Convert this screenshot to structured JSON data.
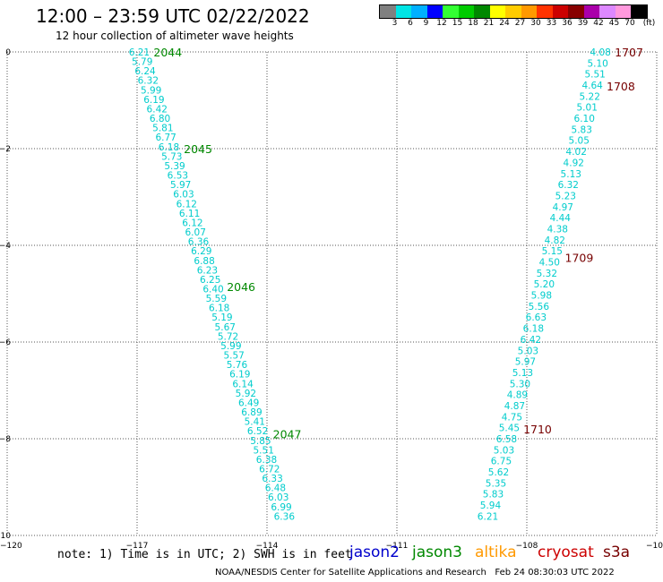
{
  "header": {
    "title": "12:00 – 23:59 UTC 02/22/2022",
    "subtitle": "12 hour collection of altimeter wave heights"
  },
  "colorbar": {
    "colors": [
      "#808080",
      "#00e5e5",
      "#00b0ff",
      "#0000ff",
      "#33ff33",
      "#00cc00",
      "#008800",
      "#ffff00",
      "#ffcc00",
      "#ff9900",
      "#ff3300",
      "#cc0000",
      "#880000",
      "#aa00aa",
      "#dd88ff",
      "#ff99dd",
      "#000000"
    ],
    "labels": [
      "3",
      "6",
      "9",
      "12",
      "15",
      "18",
      "21",
      "24",
      "27",
      "30",
      "33",
      "36",
      "39",
      "42",
      "45",
      "70",
      "(ft)"
    ]
  },
  "axes": {
    "x_ticks": [
      "−120",
      "−117",
      "−114",
      "−111",
      "−108",
      "−10"
    ],
    "y_ticks": [
      "0",
      "−2",
      "−4",
      "−6",
      "−8",
      "−10"
    ]
  },
  "chart_data": {
    "type": "scatter",
    "xlim": [
      -120,
      -105
    ],
    "ylim": [
      -10,
      0
    ],
    "grid": true,
    "tracks": [
      {
        "satellite": "jason3",
        "color": "#00cccc",
        "label_color": "#008800",
        "lon_start": -116.95,
        "lat_start": 0,
        "lon_end": -113.6,
        "lat_end": -9.6,
        "values": [
          6.21,
          5.79,
          6.24,
          6.32,
          5.99,
          6.19,
          6.42,
          6.8,
          5.81,
          6.77,
          6.18,
          5.73,
          5.39,
          6.53,
          5.97,
          6.03,
          6.12,
          6.11,
          6.12,
          6.07,
          6.36,
          6.29,
          6.88,
          6.23,
          6.25,
          6.4,
          5.59,
          6.18,
          5.19,
          5.67,
          5.72,
          5.99,
          5.57,
          5.76,
          6.19,
          6.14,
          5.92,
          6.49,
          6.89,
          5.41,
          6.52,
          5.85,
          5.51,
          6.38,
          6.72,
          6.33,
          6.48,
          6.03,
          6.99,
          6.36
        ],
        "time_labels": [
          {
            "text": "2044",
            "lat": 0
          },
          {
            "text": "2045",
            "lat": -2
          },
          {
            "text": "2046",
            "lat": -4.85
          },
          {
            "text": "2047",
            "lat": -7.9
          }
        ]
      },
      {
        "satellite": "cryosat",
        "color": "#00cccc",
        "label_color": "#770000",
        "lon_start": -106.3,
        "lat_start": 0,
        "lon_end": -108.9,
        "lat_end": -9.6,
        "values": [
          4.08,
          5.1,
          5.51,
          4.64,
          5.22,
          5.01,
          6.1,
          5.83,
          5.05,
          4.02,
          4.92,
          5.13,
          6.32,
          5.23,
          4.97,
          4.44,
          4.38,
          4.82,
          5.15,
          4.5,
          5.32,
          5.2,
          5.98,
          5.56,
          6.63,
          6.18,
          6.42,
          5.03,
          5.97,
          5.13,
          5.3,
          4.89,
          4.87,
          4.75,
          5.45,
          6.58,
          5.03,
          6.75,
          5.62,
          5.35,
          5.83,
          5.94,
          6.21
        ],
        "time_labels": [
          {
            "text": "1707",
            "lat": 0
          },
          {
            "text": "1708",
            "lat": -0.7
          },
          {
            "text": "1709",
            "lat": -4.25
          },
          {
            "text": "1710",
            "lat": -7.8
          }
        ]
      }
    ]
  },
  "notes": {
    "text": "note: 1) Time is in UTC; 2) SWH is in feet"
  },
  "satellites": [
    {
      "name": "jason2",
      "color": "#0000cc"
    },
    {
      "name": "jason3",
      "color": "#008800"
    },
    {
      "name": "altika",
      "color": "#ff9900"
    },
    {
      "name": "cryosat",
      "color": "#cc0000"
    },
    {
      "name": "s3a",
      "color": "#770000"
    }
  ],
  "footer": {
    "credit": "NOAA/NESDIS Center for Satellite Applications and Research",
    "timestamp": "Feb 24 08:30:03 UTC 2022"
  }
}
